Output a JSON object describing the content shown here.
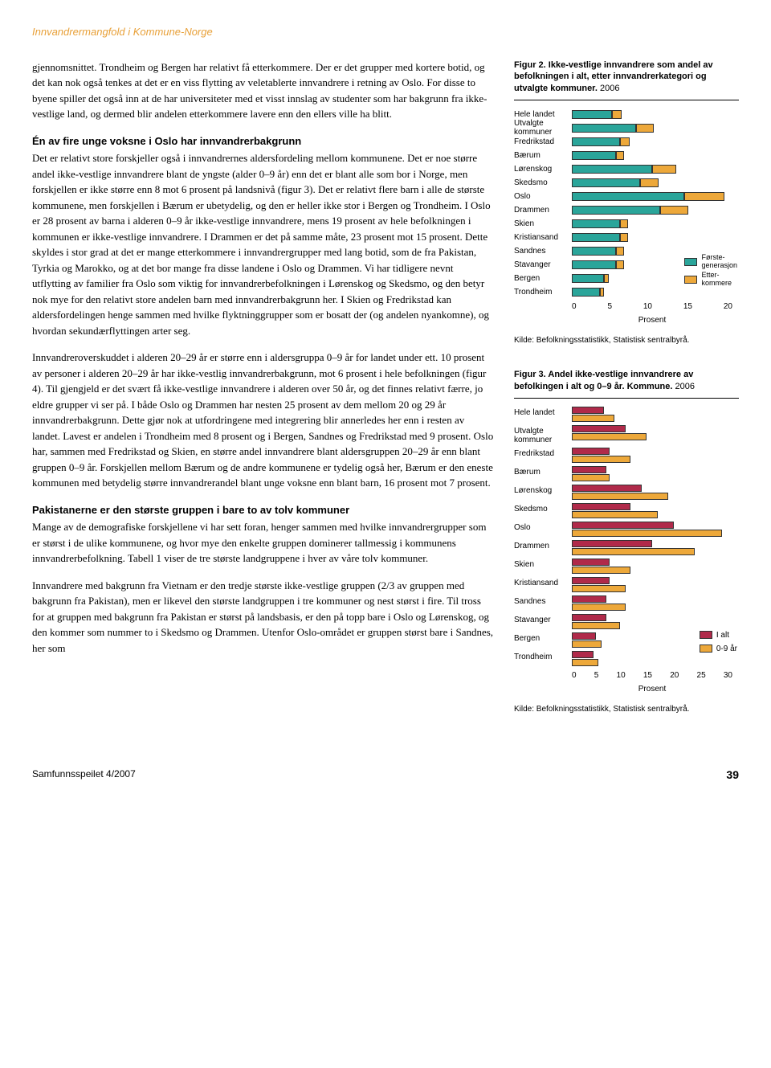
{
  "header": "Innvandrermangfold i Kommune-Norge",
  "paragraphs": {
    "p1": "gjennomsnittet. Trondheim og Bergen har relativt få etterkommere. Der er det grupper med kortere botid, og det kan nok også tenkes at det er en viss flytting av veletablerte innvandrere i retning av Oslo. For disse to byene spiller det også inn at de har universiteter med et visst innslag av studenter som har bakgrunn fra ikke-vestlige land, og dermed blir andelen etterkommere lavere enn den ellers ville ha blitt.",
    "h1": "Én av fire unge voksne i Oslo har innvandrerbakgrunn",
    "p2": "Det er relativt store forskjeller også i innvandrernes aldersfordeling mellom kommunene. Det er noe større andel ikke-vestlige innvandrere blant de yngste (alder 0–9 år) enn det er blant alle som bor i Norge, men forskjellen er ikke større enn 8 mot 6 prosent på landsnivå (figur 3). Det er relativt flere barn i alle de største kommunene, men forskjellen i Bærum er ubetydelig, og den er heller ikke stor i Bergen og Trondheim. I Oslo er 28 prosent av barna i alderen 0–9 år ikke-vestlige innvandrere, mens 19 prosent av hele befolkningen i kommunen er ikke-vestlige innvandrere. I Drammen er det på samme måte, 23 prosent mot 15 prosent. Dette skyldes i stor grad at det er mange etterkommere i innvandrergrupper med lang botid, som de fra Pakistan, Tyrkia og Marokko, og at det bor mange fra disse landene i Oslo og Drammen. Vi har tidligere nevnt utflytting av familier fra Oslo som viktig for innvandrerbefolkningen i Lørenskog og Skedsmo, og den betyr nok mye for den relativt store andelen barn med innvandrerbakgrunn her. I Skien og Fredrikstad kan aldersfordelingen henge sammen med hvilke flyktninggrupper som er bosatt der (og andelen nyankomne), og hvordan sekundærflyttingen arter seg.",
    "p3": "Innvandreroverskuddet i alderen 20–29 år er større enn i aldersgruppa 0–9 år for landet under ett. 10 prosent av personer i alderen 20–29 år har ikke-vestlig innvandrerbakgrunn, mot 6 prosent i hele befolkningen (figur 4). Til gjengjeld er det svært få ikke-vestlige innvandrere i alderen over 50 år, og det finnes relativt færre, jo eldre grupper vi ser på. I både Oslo og Drammen har nesten 25 prosent av dem mellom 20 og 29 år innvandrerbakgrunn. Dette gjør nok at utfordringene med integrering blir annerledes her enn i resten av landet. Lavest er andelen i Trondheim med 8 prosent og i Bergen, Sandnes og Fredrikstad med 9 prosent. Oslo har, sammen med Fredrikstad og Skien, en større andel innvandrere blant aldersgruppen 20–29 år enn blant gruppen 0–9 år. Forskjellen mellom Bærum og de andre kommunene er tydelig også her, Bærum er den eneste kommunen med betydelig større innvandrerandel blant unge voksne enn blant barn, 16 prosent mot 7 prosent.",
    "h2": "Pakistanerne er den største gruppen i bare to av tolv kommuner",
    "p4": "Mange av de demografiske forskjellene vi har sett foran, henger sammen med hvilke innvandrergrupper som er størst i de ulike kommunene, og hvor mye den enkelte gruppen dominerer tallmessig i kommunens innvandrerbefolkning. Tabell 1 viser de tre største landgruppene i hver av våre tolv kommuner.",
    "p5": "Innvandrere med bakgrunn fra Vietnam er den tredje største ikke-vestlige gruppen (2/3 av gruppen med bakgrunn fra Pakistan), men er likevel den største landgruppen i tre kommuner og nest størst i fire. Til tross for at gruppen med bakgrunn fra Pakistan er størst på landsbasis, er den på topp bare i Oslo og Lørenskog, og den kommer som nummer to i Skedsmo og Drammen. Utenfor Oslo-området er gruppen størst bare i Sandnes, her som"
  },
  "fig2": {
    "title_bold": "Figur 2. Ikke-vestlige innvandrere som andel av befolkningen i alt, etter innvandrerkategori og utvalgte kommuner.",
    "title_rest": " 2006",
    "categories": [
      "Hele landet",
      "Utvalgte kommuner",
      "Fredrikstad",
      "Bærum",
      "Lørenskog",
      "Skedsmo",
      "Oslo",
      "Drammen",
      "Skien",
      "Kristiansand",
      "Sandnes",
      "Stavanger",
      "Bergen",
      "Trondheim"
    ],
    "first_gen": [
      5,
      8,
      6,
      5.5,
      10,
      8.5,
      14,
      11,
      6,
      6,
      5.5,
      5.5,
      4,
      3.5
    ],
    "etter": [
      1.2,
      2.2,
      1.2,
      1,
      3,
      2.3,
      5,
      3.5,
      1,
      1,
      1,
      1,
      0.6,
      0.5
    ],
    "xmax": 20,
    "xticks": [
      0,
      5,
      10,
      15,
      20
    ],
    "color_first": "#2aa59a",
    "color_etter": "#eda83a",
    "axis_label": "Prosent",
    "legend": [
      "Første-generasjon",
      "Etter-kommere"
    ],
    "source": "Kilde: Befolkningsstatistikk, Statistisk sentralbyrå."
  },
  "fig3": {
    "title_bold": "Figur 3. Andel ikke-vestlige innvandrere av befolkingen i alt og 0–9 år. Kommune.",
    "title_rest": " 2006",
    "categories": [
      "Hele landet",
      "Utvalgte kommuner",
      "Fredrikstad",
      "Bærum",
      "Lørenskog",
      "Skedsmo",
      "Oslo",
      "Drammen",
      "Skien",
      "Kristiansand",
      "Sandnes",
      "Stavanger",
      "Bergen",
      "Trondheim"
    ],
    "i_alt": [
      6,
      10,
      7,
      6.5,
      13,
      11,
      19,
      15,
      7,
      7,
      6.5,
      6.5,
      4.5,
      4
    ],
    "age_0_9": [
      8,
      14,
      11,
      7,
      18,
      16,
      28,
      23,
      11,
      10,
      10,
      9,
      5.5,
      5
    ],
    "xmax": 30,
    "xticks": [
      0,
      5,
      10,
      15,
      20,
      25,
      30
    ],
    "color_alt": "#b02a4a",
    "color_09": "#eda83a",
    "axis_label": "Prosent",
    "legend": [
      "I alt",
      "0-9 år"
    ],
    "source": "Kilde: Befolkningsstatistikk, Statistisk sentralbyrå."
  },
  "footer": {
    "left": "Samfunnsspeilet 4/2007",
    "page": "39"
  }
}
